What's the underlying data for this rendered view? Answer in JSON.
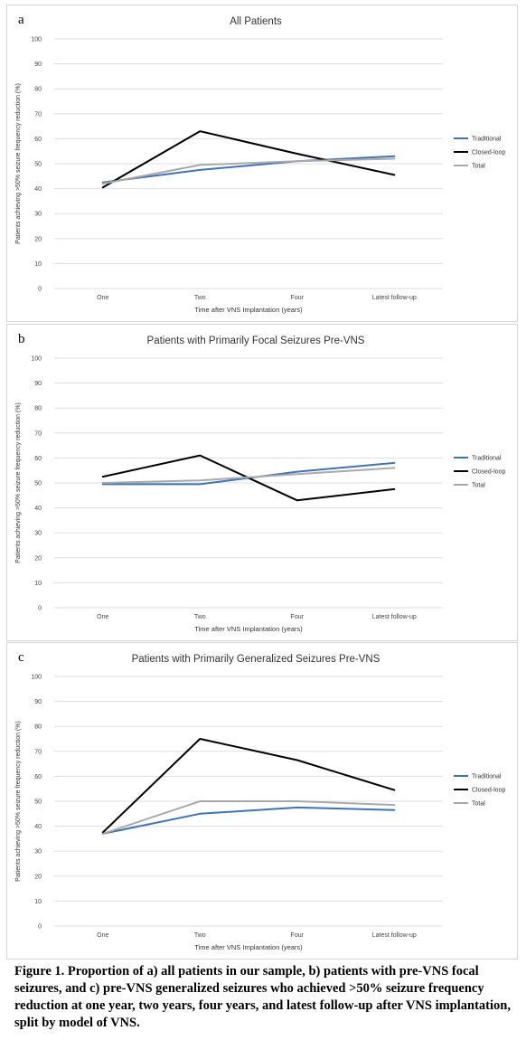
{
  "caption": "Figure 1. Proportion of a) all patients in our sample, b) patients with pre-VNS focal seizures, and c) pre-VNS generalized seizures who achieved >50% seizure frequency reduction at one year, two years, four years, and latest follow-up after VNS implantation, split by model of VNS.",
  "colors": {
    "traditional": "#3e73b7",
    "closed_loop": "#000000",
    "total": "#a9a9a9"
  },
  "chart_data": [
    {
      "panel_letter": "a",
      "type": "line",
      "title": "All Patients",
      "xlabel": "Time after VNS Implantation (years)",
      "ylabel": "Patients achieving >50% seizure frequency reduction (%)",
      "categories": [
        "One",
        "Two",
        "Four",
        "Latest follow-up"
      ],
      "ylim": [
        0,
        100
      ],
      "yticks": [
        "0",
        "10",
        "20",
        "30",
        "40",
        "50",
        "60",
        "70",
        "80",
        "90",
        "100"
      ],
      "grid": true,
      "legend": "right",
      "series": [
        {
          "name": "Traditional",
          "values": [
            42.5,
            47.5,
            51,
            53
          ]
        },
        {
          "name": "Closed-loop",
          "values": [
            40.5,
            63,
            54,
            45.5
          ]
        },
        {
          "name": "Total",
          "values": [
            42,
            49.5,
            51,
            52
          ]
        }
      ]
    },
    {
      "panel_letter": "b",
      "type": "line",
      "title": "Patients with Primarily Focal Seizures Pre-VNS",
      "xlabel": "Time after VNS Implantation (years)",
      "ylabel": "Patients achieving >50% seizure frequency reduction (%)",
      "categories": [
        "One",
        "Two",
        "Four",
        "Latest follow-up"
      ],
      "ylim": [
        0,
        100
      ],
      "yticks": [
        "0",
        "10",
        "20",
        "30",
        "40",
        "50",
        "60",
        "70",
        "80",
        "90",
        "100"
      ],
      "grid": true,
      "legend": "right",
      "series": [
        {
          "name": "Traditional",
          "values": [
            49.5,
            49.5,
            54.5,
            58
          ]
        },
        {
          "name": "Closed-loop",
          "values": [
            52.5,
            61,
            43,
            47.5
          ]
        },
        {
          "name": "Total",
          "values": [
            50,
            51,
            53.5,
            56
          ]
        }
      ]
    },
    {
      "panel_letter": "c",
      "type": "line",
      "title": "Patients with Primarily Generalized Seizures Pre-VNS",
      "xlabel": "Time after VNS Implantation (years)",
      "ylabel": "Patients achieving >50% seizure frequency reduction (%)",
      "categories": [
        "One",
        "Two",
        "Four",
        "Latest follow-up"
      ],
      "ylim": [
        0,
        100
      ],
      "yticks": [
        "0",
        "10",
        "20",
        "30",
        "40",
        "50",
        "60",
        "70",
        "80",
        "90",
        "100"
      ],
      "grid": true,
      "legend": "right",
      "series": [
        {
          "name": "Traditional",
          "values": [
            37,
            45,
            47.5,
            46.5
          ]
        },
        {
          "name": "Closed-loop",
          "values": [
            37.5,
            75,
            66.5,
            54.5
          ]
        },
        {
          "name": "Total",
          "values": [
            37,
            50,
            50,
            48.5
          ]
        }
      ]
    }
  ]
}
